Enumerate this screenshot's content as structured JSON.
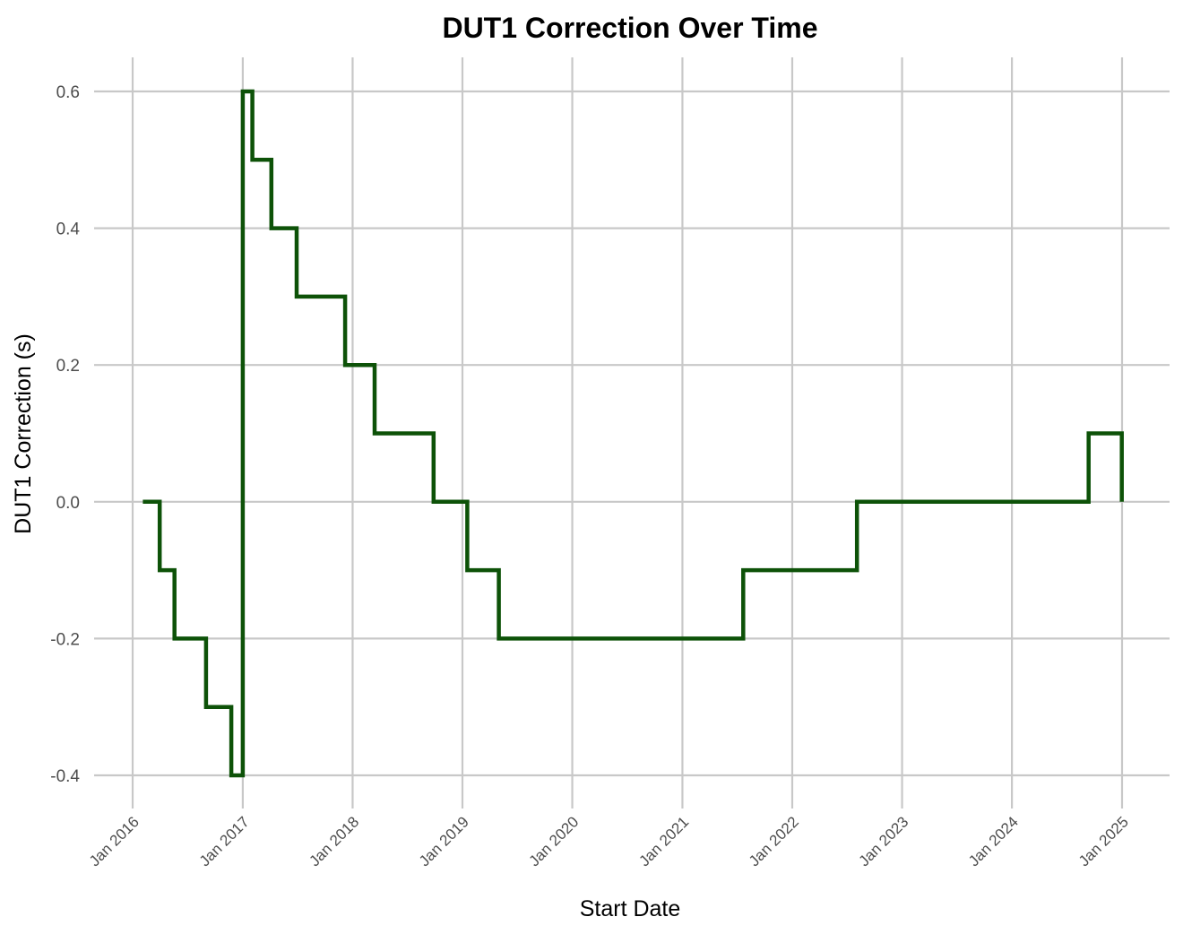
{
  "chart_data": {
    "type": "line",
    "step": true,
    "title": "DUT1 Correction Over Time",
    "xlabel": "Start Date",
    "ylabel": "DUT1 Correction (s)",
    "xlim": [
      "2016-01-01",
      "2025-05-01"
    ],
    "ylim": [
      -0.45,
      0.65
    ],
    "x_ticks": [
      "2016-01-01",
      "2017-01-01",
      "2018-01-01",
      "2019-01-01",
      "2020-01-01",
      "2021-01-01",
      "2022-01-01",
      "2023-01-01",
      "2024-01-01",
      "2025-01-01"
    ],
    "x_tick_labels": [
      "Jan 2016",
      "Jan 2017",
      "Jan 2018",
      "Jan 2019",
      "Jan 2020",
      "Jan 2021",
      "Jan 2022",
      "Jan 2023",
      "Jan 2024",
      "Jan 2025"
    ],
    "y_ticks": [
      -0.4,
      -0.2,
      0.0,
      0.2,
      0.4,
      0.6
    ],
    "y_tick_labels": [
      "-0.4",
      "-0.2",
      "0.0",
      "0.2",
      "0.4",
      "0.6"
    ],
    "grid": true,
    "series": [
      {
        "color": "#0d5208",
        "x": [
          "2016-02-04",
          "2016-03-31",
          "2016-05-19",
          "2016-09-01",
          "2016-11-24",
          "2017-01-01",
          "2017-02-02",
          "2017-04-06",
          "2017-06-29",
          "2017-12-07",
          "2018-03-15",
          "2018-09-27",
          "2019-01-17",
          "2019-05-02",
          "2021-07-22",
          "2022-08-04",
          "2024-09-12",
          "2024-12-31"
        ],
        "values": [
          0.0,
          -0.1,
          -0.2,
          -0.3,
          -0.4,
          0.6,
          0.5,
          0.4,
          0.3,
          0.2,
          0.1,
          0.0,
          -0.1,
          -0.2,
          -0.1,
          0.0,
          0.1,
          0.0
        ]
      }
    ]
  }
}
